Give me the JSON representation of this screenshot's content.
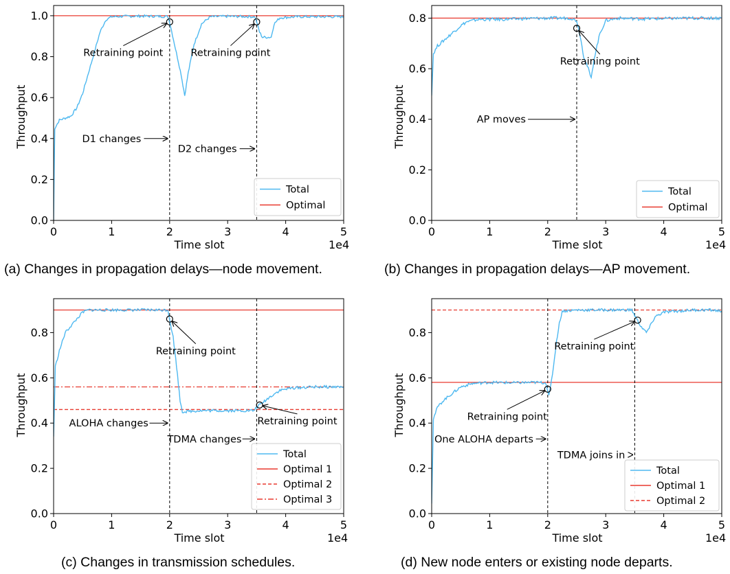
{
  "chart_data": [
    {
      "id": "a",
      "type": "line",
      "caption": "(a) Changes in propagation delays—node movement.",
      "xlabel": "Time slot",
      "ylabel": "Throughput",
      "x_offset_label": "1e4",
      "xlim": [
        0,
        5
      ],
      "ylim": [
        0,
        1.05
      ],
      "xticks": [
        "0",
        "1",
        "2",
        "3",
        "4",
        "5"
      ],
      "yticks": [
        "0.0",
        "0.2",
        "0.4",
        "0.6",
        "0.8",
        "1.0"
      ],
      "ytick_values": [
        0,
        0.2,
        0.4,
        0.6,
        0.8,
        1.0
      ],
      "legend": {
        "position": "lower-right",
        "entries": [
          "Total",
          "Optimal"
        ]
      },
      "series": [
        {
          "name": "Total",
          "color": "#4db8f0",
          "points": [
            [
              0,
              0
            ],
            [
              0.02,
              0.45
            ],
            [
              0.1,
              0.49
            ],
            [
              0.2,
              0.5
            ],
            [
              0.3,
              0.51
            ],
            [
              0.4,
              0.55
            ],
            [
              0.5,
              0.62
            ],
            [
              0.6,
              0.72
            ],
            [
              0.7,
              0.82
            ],
            [
              0.8,
              0.92
            ],
            [
              0.9,
              0.98
            ],
            [
              1.0,
              0.995
            ],
            [
              1.2,
              0.997
            ],
            [
              1.5,
              0.998
            ],
            [
              1.8,
              0.997
            ],
            [
              1.97,
              0.996
            ],
            [
              2.0,
              0.97
            ],
            [
              2.1,
              0.84
            ],
            [
              2.2,
              0.71
            ],
            [
              2.26,
              0.61
            ],
            [
              2.32,
              0.72
            ],
            [
              2.42,
              0.86
            ],
            [
              2.55,
              0.96
            ],
            [
              2.7,
              0.995
            ],
            [
              3.0,
              0.997
            ],
            [
              3.3,
              0.996
            ],
            [
              3.47,
              0.995
            ],
            [
              3.5,
              0.97
            ],
            [
              3.55,
              0.92
            ],
            [
              3.6,
              0.895
            ],
            [
              3.75,
              0.895
            ],
            [
              3.8,
              0.96
            ],
            [
              3.9,
              0.99
            ],
            [
              4.2,
              0.995
            ],
            [
              4.6,
              0.995
            ],
            [
              5.0,
              0.995
            ]
          ]
        },
        {
          "name": "Optimal",
          "color": "#e8392f",
          "hline": 1.0,
          "style": "solid"
        }
      ],
      "vlines": [
        2.0,
        3.5
      ],
      "markers": [
        [
          2.0,
          0.97
        ],
        [
          3.5,
          0.97
        ]
      ],
      "annotations": [
        {
          "text": "Retraining point",
          "xy": [
            2.0,
            0.97
          ],
          "xytext": [
            1.2,
            0.82
          ]
        },
        {
          "text": "Retraining point",
          "xy": [
            3.5,
            0.97
          ],
          "xytext": [
            3.05,
            0.82
          ]
        },
        {
          "text": "D1 changes",
          "xy": [
            2.0,
            0.4
          ],
          "xytext": [
            1.0,
            0.4
          ]
        },
        {
          "text": "D2 changes",
          "xy": [
            3.5,
            0.35
          ],
          "xytext": [
            2.65,
            0.35
          ]
        }
      ]
    },
    {
      "id": "b",
      "type": "line",
      "caption": "(b) Changes in propagation delays—AP movement.",
      "xlabel": "Time slot",
      "ylabel": "Throughput",
      "x_offset_label": "1e4",
      "xlim": [
        0,
        5
      ],
      "ylim": [
        0,
        0.85
      ],
      "xticks": [
        "0",
        "1",
        "2",
        "3",
        "4",
        "5"
      ],
      "yticks": [
        "0.0",
        "0.2",
        "0.4",
        "0.6",
        "0.8"
      ],
      "ytick_values": [
        0,
        0.2,
        0.4,
        0.6,
        0.8
      ],
      "legend": {
        "position": "lower-right",
        "entries": [
          "Total",
          "Optimal"
        ]
      },
      "series": [
        {
          "name": "Total",
          "color": "#4db8f0",
          "points": [
            [
              0,
              0.5
            ],
            [
              0.03,
              0.66
            ],
            [
              0.1,
              0.69
            ],
            [
              0.2,
              0.71
            ],
            [
              0.3,
              0.73
            ],
            [
              0.4,
              0.75
            ],
            [
              0.5,
              0.77
            ],
            [
              0.6,
              0.785
            ],
            [
              0.8,
              0.795
            ],
            [
              1.2,
              0.795
            ],
            [
              1.6,
              0.798
            ],
            [
              2.0,
              0.8
            ],
            [
              2.4,
              0.8
            ],
            [
              2.5,
              0.79
            ],
            [
              2.56,
              0.73
            ],
            [
              2.62,
              0.65
            ],
            [
              2.7,
              0.6
            ],
            [
              2.75,
              0.56
            ],
            [
              2.8,
              0.64
            ],
            [
              2.9,
              0.74
            ],
            [
              3.0,
              0.79
            ],
            [
              3.2,
              0.8
            ],
            [
              3.6,
              0.797
            ],
            [
              4.0,
              0.798
            ],
            [
              4.5,
              0.8
            ],
            [
              5.0,
              0.8
            ]
          ]
        },
        {
          "name": "Optimal",
          "color": "#e8392f",
          "hline": 0.8,
          "style": "solid"
        }
      ],
      "vlines": [
        2.5
      ],
      "markers": [
        [
          2.5,
          0.76
        ]
      ],
      "annotations": [
        {
          "text": "Retraining point",
          "xy": [
            2.5,
            0.76
          ],
          "xytext": [
            2.9,
            0.63
          ]
        },
        {
          "text": "AP moves",
          "xy": [
            2.5,
            0.4
          ],
          "xytext": [
            1.2,
            0.4
          ]
        }
      ]
    },
    {
      "id": "c",
      "type": "line",
      "caption": "(c) Changes in transmission schedules.",
      "xlabel": "Time slot",
      "ylabel": "Throughput",
      "x_offset_label": "1e4",
      "xlim": [
        0,
        5
      ],
      "ylim": [
        0,
        0.95
      ],
      "xticks": [
        "0",
        "1",
        "2",
        "3",
        "4",
        "5"
      ],
      "yticks": [
        "0.0",
        "0.2",
        "0.4",
        "0.6",
        "0.8"
      ],
      "ytick_values": [
        0,
        0.2,
        0.4,
        0.6,
        0.8
      ],
      "legend": {
        "position": "lower-right",
        "entries": [
          "Total",
          "Optimal 1",
          "Optimal 2",
          "Optimal 3"
        ]
      },
      "series": [
        {
          "name": "Total",
          "color": "#4db8f0",
          "points": [
            [
              0,
              0.34
            ],
            [
              0.03,
              0.65
            ],
            [
              0.1,
              0.72
            ],
            [
              0.2,
              0.8
            ],
            [
              0.3,
              0.83
            ],
            [
              0.4,
              0.86
            ],
            [
              0.5,
              0.89
            ],
            [
              0.6,
              0.9
            ],
            [
              0.8,
              0.9
            ],
            [
              1.2,
              0.9
            ],
            [
              1.6,
              0.9
            ],
            [
              1.97,
              0.9
            ],
            [
              2.0,
              0.86
            ],
            [
              2.06,
              0.78
            ],
            [
              2.12,
              0.65
            ],
            [
              2.18,
              0.5
            ],
            [
              2.22,
              0.45
            ],
            [
              2.5,
              0.455
            ],
            [
              3.0,
              0.455
            ],
            [
              3.45,
              0.455
            ],
            [
              3.5,
              0.47
            ],
            [
              3.6,
              0.49
            ],
            [
              3.75,
              0.52
            ],
            [
              3.9,
              0.545
            ],
            [
              4.1,
              0.555
            ],
            [
              4.5,
              0.56
            ],
            [
              5.0,
              0.56
            ]
          ]
        },
        {
          "name": "Optimal 1",
          "color": "#e8392f",
          "hline": 0.9,
          "style": "solid"
        },
        {
          "name": "Optimal 2",
          "color": "#e8392f",
          "hline": 0.46,
          "style": "dashed"
        },
        {
          "name": "Optimal 3",
          "color": "#e8392f",
          "hline": 0.56,
          "style": "dashdot"
        }
      ],
      "vlines": [
        2.0,
        3.5
      ],
      "markers": [
        [
          2.0,
          0.86
        ],
        [
          3.55,
          0.48
        ]
      ],
      "annotations": [
        {
          "text": "Retraining point",
          "xy": [
            2.0,
            0.86
          ],
          "xytext": [
            2.45,
            0.72
          ]
        },
        {
          "text": "Retraining point",
          "xy": [
            3.55,
            0.48
          ],
          "xytext": [
            4.2,
            0.41
          ]
        },
        {
          "text": "ALOHA changes",
          "xy": [
            2.0,
            0.4
          ],
          "xytext": [
            0.95,
            0.4
          ]
        },
        {
          "text": "TDMA changes",
          "xy": [
            3.5,
            0.33
          ],
          "xytext": [
            2.6,
            0.33
          ]
        }
      ]
    },
    {
      "id": "d",
      "type": "line",
      "caption": "(d) New node enters or existing node departs.",
      "xlabel": "Time slot",
      "ylabel": "Throughput",
      "x_offset_label": "1e4",
      "xlim": [
        0,
        5
      ],
      "ylim": [
        0,
        0.95
      ],
      "xticks": [
        "0",
        "1",
        "2",
        "3",
        "4",
        "5"
      ],
      "yticks": [
        "0.0",
        "0.2",
        "0.4",
        "0.6",
        "0.8"
      ],
      "ytick_values": [
        0,
        0.2,
        0.4,
        0.6,
        0.8
      ],
      "legend": {
        "position": "lower-right",
        "entries": [
          "Total",
          "Optimal 1",
          "Optimal 2"
        ]
      },
      "series": [
        {
          "name": "Total",
          "color": "#4db8f0",
          "points": [
            [
              0,
              0.05
            ],
            [
              0.03,
              0.42
            ],
            [
              0.1,
              0.47
            ],
            [
              0.2,
              0.5
            ],
            [
              0.3,
              0.52
            ],
            [
              0.4,
              0.54
            ],
            [
              0.5,
              0.56
            ],
            [
              0.7,
              0.575
            ],
            [
              1.0,
              0.58
            ],
            [
              1.4,
              0.578
            ],
            [
              1.8,
              0.58
            ],
            [
              1.97,
              0.578
            ],
            [
              2.02,
              0.52
            ],
            [
              2.05,
              0.56
            ],
            [
              2.1,
              0.65
            ],
            [
              2.15,
              0.76
            ],
            [
              2.2,
              0.84
            ],
            [
              2.25,
              0.895
            ],
            [
              2.5,
              0.9
            ],
            [
              3.0,
              0.9
            ],
            [
              3.45,
              0.9
            ],
            [
              3.5,
              0.875
            ],
            [
              3.6,
              0.83
            ],
            [
              3.7,
              0.8
            ],
            [
              3.75,
              0.82
            ],
            [
              3.85,
              0.87
            ],
            [
              4.0,
              0.89
            ],
            [
              4.5,
              0.9
            ],
            [
              4.8,
              0.9
            ],
            [
              5.0,
              0.895
            ]
          ]
        },
        {
          "name": "Optimal 1",
          "color": "#e8392f",
          "hline": 0.58,
          "style": "solid"
        },
        {
          "name": "Optimal 2",
          "color": "#e8392f",
          "hline": 0.9,
          "style": "dashed"
        }
      ],
      "vlines": [
        2.0,
        3.5
      ],
      "markers": [
        [
          2.0,
          0.55
        ],
        [
          3.55,
          0.855
        ]
      ],
      "annotations": [
        {
          "text": "Retraining point",
          "xy": [
            2.0,
            0.55
          ],
          "xytext": [
            1.3,
            0.43
          ]
        },
        {
          "text": "Retraining point",
          "xy": [
            3.55,
            0.855
          ],
          "xytext": [
            2.8,
            0.74
          ]
        },
        {
          "text": "One ALOHA departs",
          "xy": [
            2.0,
            0.33
          ],
          "xytext": [
            0.9,
            0.33
          ]
        },
        {
          "text": "TDMA joins in",
          "xy": [
            3.5,
            0.26
          ],
          "xytext": [
            2.75,
            0.26
          ]
        }
      ]
    }
  ]
}
